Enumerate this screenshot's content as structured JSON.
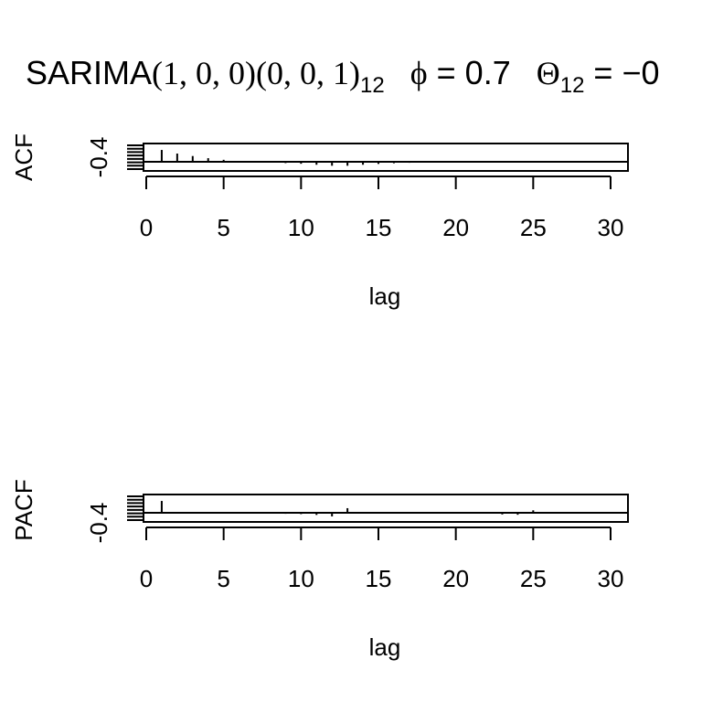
{
  "title": {
    "prefix": "SARIMA",
    "orders": "(1, 0, 0)(0, 0, 1)",
    "season_sub": "12",
    "phi_symbol": "ϕ",
    "phi_eq": " = 0.7",
    "theta_symbol": "Θ",
    "theta_sub": "12",
    "theta_eq": " = −0"
  },
  "chart_data": [
    {
      "type": "bar",
      "ylabel": "ACF",
      "xlabel": "lag",
      "ytick_label": "-0.4",
      "xlim": [
        0,
        31
      ],
      "ylim": [
        -0.4,
        1.0
      ],
      "xticks": [
        "0",
        "5",
        "10",
        "15",
        "20",
        "25",
        "30"
      ],
      "lags": [
        1,
        2,
        3,
        4,
        5,
        6,
        7,
        8,
        9,
        10,
        11,
        12,
        13,
        14,
        15,
        16,
        17,
        18,
        19,
        20,
        21,
        22,
        23,
        24,
        25,
        26,
        27,
        28,
        29,
        30
      ],
      "values": [
        0.72,
        0.5,
        0.35,
        0.22,
        0.12,
        0.03,
        -0.01,
        -0.05,
        -0.08,
        -0.12,
        -0.18,
        -0.24,
        -0.24,
        -0.18,
        -0.13,
        -0.09,
        -0.06,
        -0.04,
        -0.03,
        -0.02,
        -0.01,
        0.0,
        0.0,
        0.0,
        0.0,
        0.0,
        0.0,
        0.0,
        0.0,
        0.0
      ]
    },
    {
      "type": "bar",
      "ylabel": "PACF",
      "xlabel": "lag",
      "ytick_label": "-0.4",
      "xlim": [
        0,
        31
      ],
      "ylim": [
        -0.4,
        1.0
      ],
      "xticks": [
        "0",
        "5",
        "10",
        "15",
        "20",
        "25",
        "30"
      ],
      "lags": [
        1,
        2,
        3,
        4,
        5,
        6,
        7,
        8,
        9,
        10,
        11,
        12,
        13,
        14,
        15,
        16,
        17,
        18,
        19,
        20,
        21,
        22,
        23,
        24,
        25,
        26,
        27,
        28,
        29,
        30
      ],
      "values": [
        0.72,
        0.0,
        0.0,
        0.0,
        -0.03,
        -0.03,
        -0.04,
        -0.05,
        -0.06,
        -0.08,
        -0.13,
        -0.22,
        0.28,
        0.0,
        0.0,
        0.0,
        0.0,
        0.0,
        -0.03,
        -0.03,
        -0.05,
        -0.05,
        -0.1,
        -0.12,
        0.15,
        0.0,
        0.0,
        0.0,
        0.0,
        0.0
      ]
    }
  ]
}
